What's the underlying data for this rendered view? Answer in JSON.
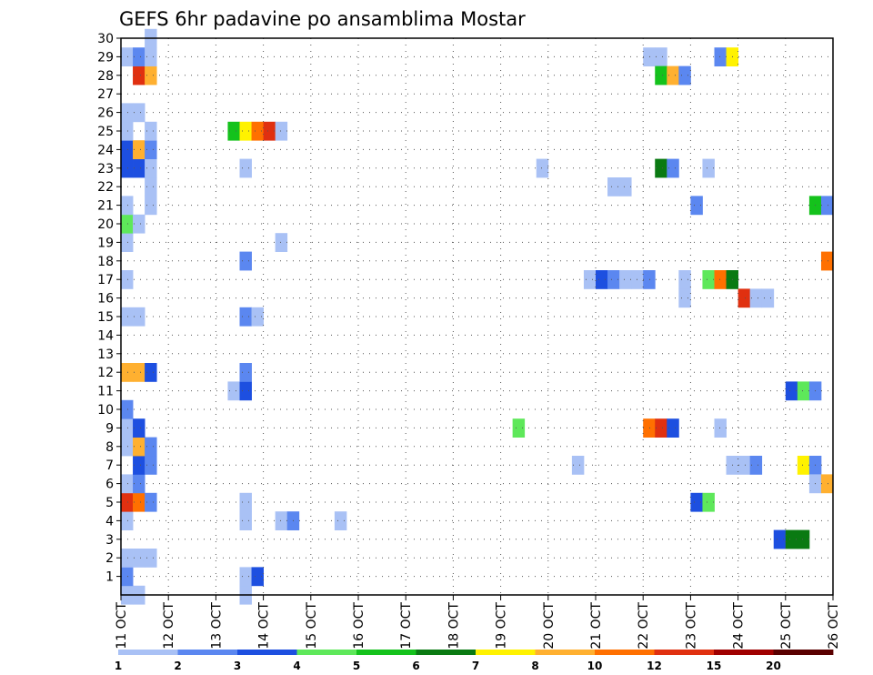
{
  "chart_data": {
    "type": "heatmap",
    "title": "GEFS 6hr padavine po ansamblima Mostar",
    "x_tick_labels": [
      "11 OCT",
      "12 OCT",
      "13 OCT",
      "14 OCT",
      "15 OCT",
      "16 OCT",
      "17 OCT",
      "18 OCT",
      "19 OCT",
      "20 OCT",
      "21 OCT",
      "22 OCT",
      "23 OCT",
      "24 OCT",
      "25 OCT",
      "26 OCT"
    ],
    "xlim": [
      0,
      15
    ],
    "y_tick_labels": [
      "1",
      "2",
      "3",
      "4",
      "5",
      "6",
      "7",
      "8",
      "9",
      "10",
      "11",
      "12",
      "13",
      "14",
      "15",
      "16",
      "17",
      "18",
      "19",
      "20",
      "21",
      "22",
      "23",
      "24",
      "25",
      "26",
      "27",
      "28",
      "29",
      "30"
    ],
    "ylim": [
      0,
      30
    ],
    "step_days": 0.25,
    "grid": true,
    "legend": {
      "position": "bottom",
      "labels": [
        "1",
        "2",
        "3",
        "4",
        "5",
        "6",
        "7",
        "8",
        "10",
        "12",
        "15",
        "20"
      ],
      "colors": [
        "#a9c1f5",
        "#5b87f0",
        "#1d4fe0",
        "#5ee85a",
        "#14c21c",
        "#0a7a12",
        "#fff200",
        "#ffb030",
        "#ff7000",
        "#e03010",
        "#a00000",
        "#5a0000"
      ]
    },
    "cells": [
      [
        0.125,
        0,
        1
      ],
      [
        0.375,
        0,
        1
      ],
      [
        0.125,
        1,
        2
      ],
      [
        0.125,
        2,
        1
      ],
      [
        0.375,
        2,
        1
      ],
      [
        0.625,
        2,
        1
      ],
      [
        0.125,
        4,
        1
      ],
      [
        0.125,
        5,
        10
      ],
      [
        0.375,
        5,
        9
      ],
      [
        0.625,
        5,
        2
      ],
      [
        0.125,
        6,
        1
      ],
      [
        0.375,
        6,
        2
      ],
      [
        0.375,
        7,
        3
      ],
      [
        0.625,
        7,
        2
      ],
      [
        0.125,
        8,
        1
      ],
      [
        0.375,
        8,
        8
      ],
      [
        0.625,
        8,
        2
      ],
      [
        0.125,
        9,
        1
      ],
      [
        0.375,
        9,
        3
      ],
      [
        0.125,
        10,
        2
      ],
      [
        0.125,
        12,
        8
      ],
      [
        0.375,
        12,
        8
      ],
      [
        0.625,
        12,
        3
      ],
      [
        0.125,
        15,
        1
      ],
      [
        0.375,
        15,
        1
      ],
      [
        0.125,
        17,
        1
      ],
      [
        0.125,
        19,
        1
      ],
      [
        0.125,
        20,
        4
      ],
      [
        0.375,
        20,
        1
      ],
      [
        0.125,
        21,
        1
      ],
      [
        0.625,
        21,
        1
      ],
      [
        0.625,
        22,
        1
      ],
      [
        0.125,
        23,
        3
      ],
      [
        0.375,
        23,
        3
      ],
      [
        0.625,
        23,
        1
      ],
      [
        0.125,
        24,
        3
      ],
      [
        0.375,
        24,
        8
      ],
      [
        0.625,
        24,
        2
      ],
      [
        0.125,
        25,
        1
      ],
      [
        0.625,
        25,
        1
      ],
      [
        0.125,
        26,
        1
      ],
      [
        0.375,
        26,
        1
      ],
      [
        0.375,
        28,
        10
      ],
      [
        0.625,
        28,
        8
      ],
      [
        0.125,
        29,
        1
      ],
      [
        0.375,
        29,
        2
      ],
      [
        0.625,
        29,
        1
      ],
      [
        0.625,
        30,
        1
      ],
      [
        2.625,
        0,
        1
      ],
      [
        2.625,
        1,
        1
      ],
      [
        2.875,
        1,
        3
      ],
      [
        2.625,
        4,
        1
      ],
      [
        2.625,
        5,
        1
      ],
      [
        2.375,
        11,
        1
      ],
      [
        2.625,
        11,
        3
      ],
      [
        2.625,
        12,
        2
      ],
      [
        2.625,
        15,
        2
      ],
      [
        2.875,
        15,
        1
      ],
      [
        2.625,
        18,
        2
      ],
      [
        2.625,
        23,
        1
      ],
      [
        2.375,
        25,
        5
      ],
      [
        2.625,
        25,
        7
      ],
      [
        2.875,
        25,
        9
      ],
      [
        3.125,
        25,
        10
      ],
      [
        3.375,
        25,
        1
      ],
      [
        3.375,
        19,
        1
      ],
      [
        3.375,
        4,
        1
      ],
      [
        3.625,
        4,
        2
      ],
      [
        4.625,
        4,
        1
      ],
      [
        8.375,
        9,
        4
      ],
      [
        8.875,
        23,
        1
      ],
      [
        9.625,
        7,
        1
      ],
      [
        9.875,
        17,
        1
      ],
      [
        10.125,
        17,
        3
      ],
      [
        10.375,
        17,
        2
      ],
      [
        10.625,
        17,
        1
      ],
      [
        10.875,
        17,
        1
      ],
      [
        11.125,
        17,
        2
      ],
      [
        10.375,
        22,
        1
      ],
      [
        10.625,
        22,
        1
      ],
      [
        11.125,
        9,
        9
      ],
      [
        11.375,
        9,
        10
      ],
      [
        11.625,
        9,
        3
      ],
      [
        11.125,
        29,
        1
      ],
      [
        11.375,
        29,
        1
      ],
      [
        11.375,
        28,
        5
      ],
      [
        11.625,
        28,
        8
      ],
      [
        11.875,
        28,
        2
      ],
      [
        11.375,
        23,
        6
      ],
      [
        11.625,
        23,
        2
      ],
      [
        11.875,
        16,
        1
      ],
      [
        11.875,
        17,
        1
      ],
      [
        12.125,
        21,
        2
      ],
      [
        12.125,
        5,
        3
      ],
      [
        12.375,
        5,
        4
      ],
      [
        12.375,
        17,
        4
      ],
      [
        12.625,
        17,
        9
      ],
      [
        12.875,
        17,
        6
      ],
      [
        12.375,
        23,
        1
      ],
      [
        12.625,
        9,
        1
      ],
      [
        12.625,
        29,
        2
      ],
      [
        12.875,
        29,
        7
      ],
      [
        12.875,
        7,
        1
      ],
      [
        13.125,
        7,
        1
      ],
      [
        13.375,
        7,
        2
      ],
      [
        13.125,
        16,
        10
      ],
      [
        13.375,
        16,
        1
      ],
      [
        13.625,
        16,
        1
      ],
      [
        13.875,
        3,
        3
      ],
      [
        14.125,
        3,
        6
      ],
      [
        14.375,
        3,
        6
      ],
      [
        14.125,
        11,
        3
      ],
      [
        14.375,
        11,
        4
      ],
      [
        14.625,
        11,
        2
      ],
      [
        14.375,
        7,
        7
      ],
      [
        14.625,
        7,
        2
      ],
      [
        14.625,
        6,
        1
      ],
      [
        14.875,
        6,
        8
      ],
      [
        14.625,
        21,
        5
      ],
      [
        14.875,
        21,
        2
      ],
      [
        14.875,
        18,
        9
      ]
    ]
  }
}
